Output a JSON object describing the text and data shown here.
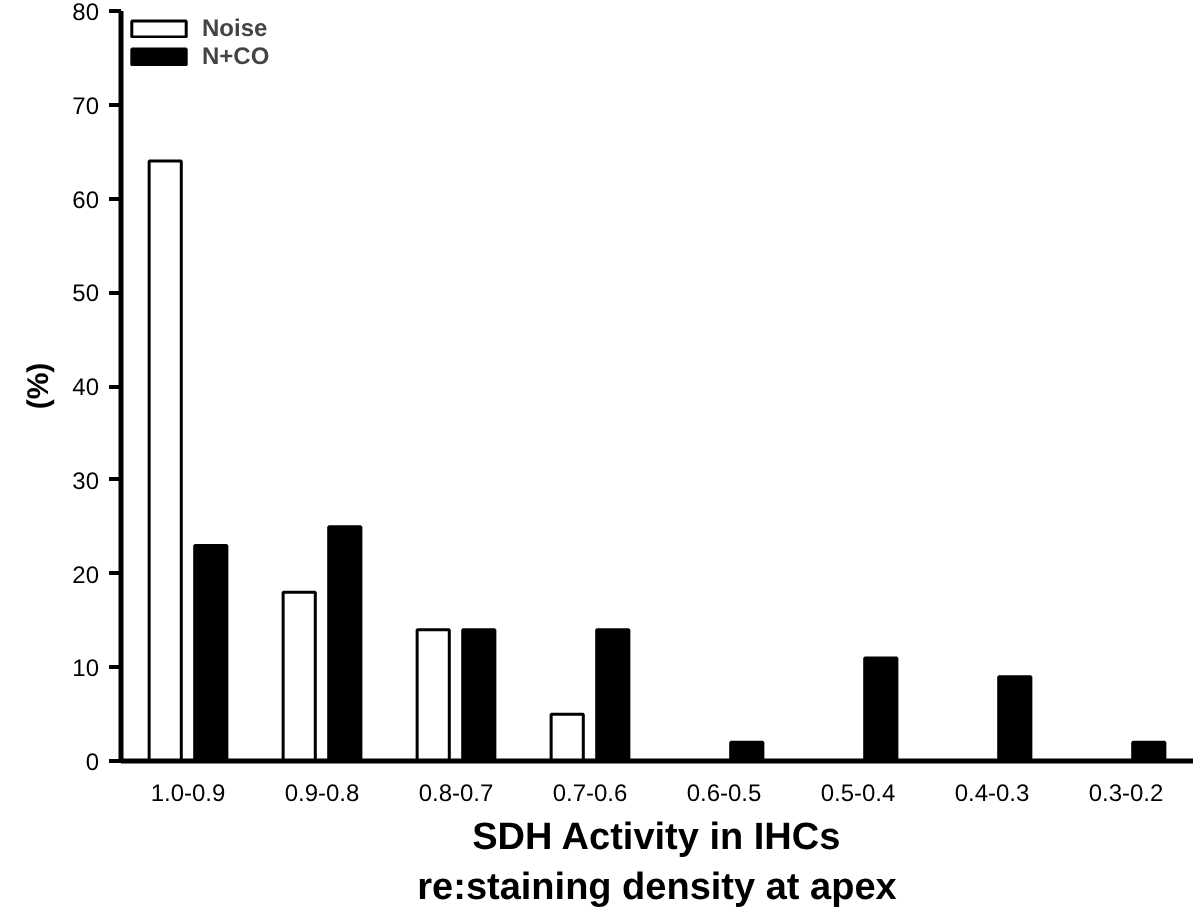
{
  "chart_data": {
    "type": "bar",
    "ylabel": "(%)",
    "xlabel": "SDH Activity in IHCs\nre:staining density at apex",
    "categories": [
      "1.0-0.9",
      "0.9-0.8",
      "0.8-0.7",
      "0.7-0.6",
      "0.6-0.5",
      "0.5-0.4",
      "0.4-0.3",
      "0.3-0.2"
    ],
    "series": [
      {
        "name": "Noise",
        "color": "#ffffff",
        "values": [
          64,
          18,
          14,
          5,
          null,
          null,
          null,
          null
        ]
      },
      {
        "name": "N+CO",
        "color": "#000000",
        "values": [
          23,
          25,
          14,
          14,
          2,
          11,
          9,
          2
        ]
      }
    ],
    "ylim": [
      0,
      80
    ],
    "yticks": [
      0,
      10,
      20,
      30,
      40,
      50,
      60,
      70,
      80
    ],
    "grid": false,
    "legend": "top left"
  }
}
